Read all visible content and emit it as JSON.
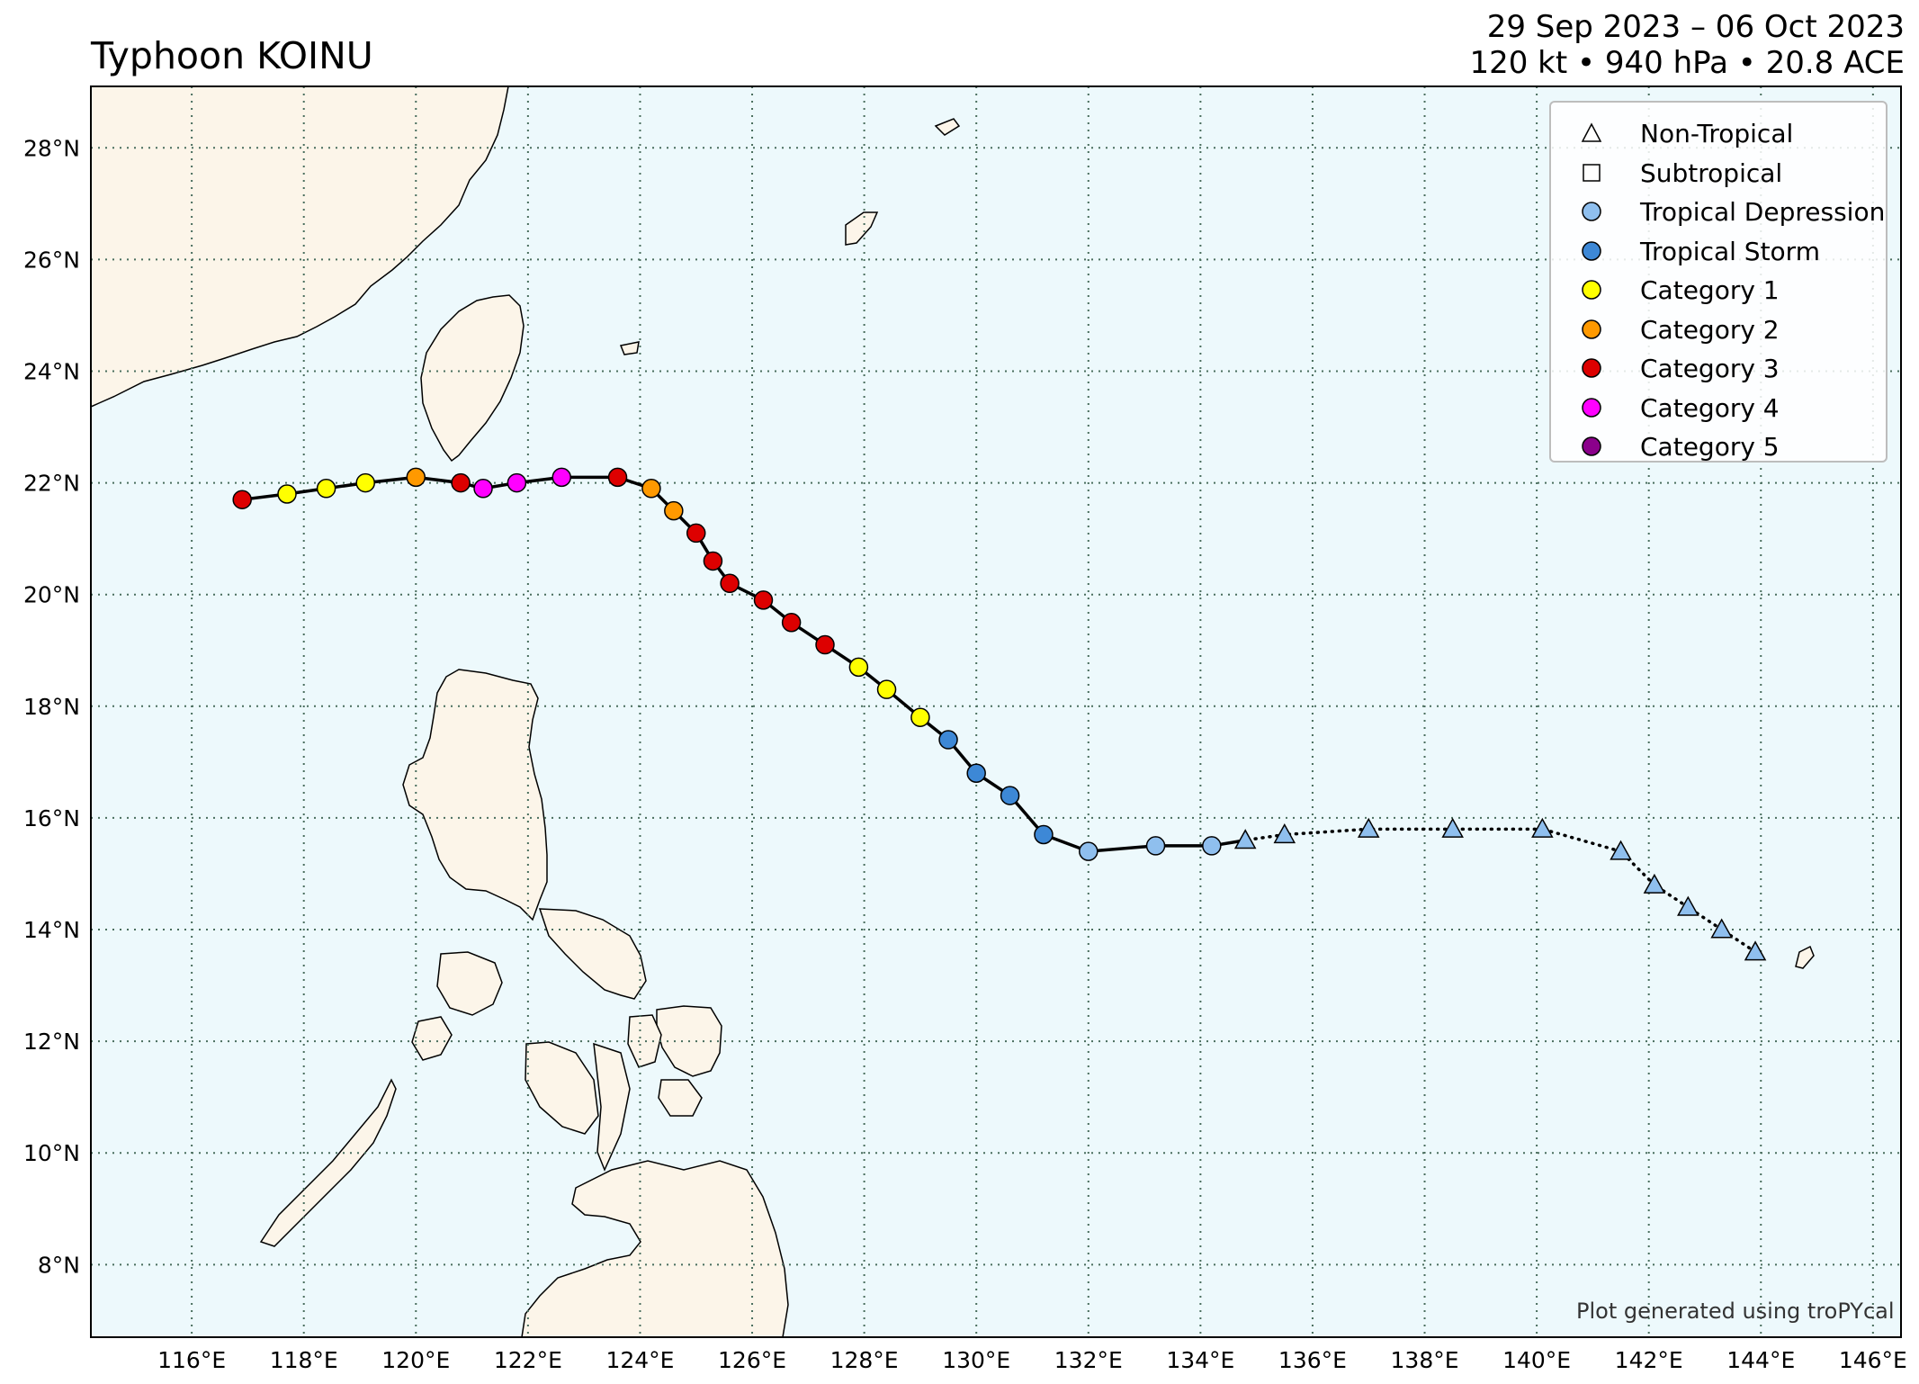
{
  "title": "Typhoon KOINU",
  "date_range": "29 Sep 2023 – 06 Oct 2023",
  "stats": "120 kt • 940 hPa • 20.8 ACE",
  "credit": "Plot generated using troPYcal",
  "colors": {
    "ocean": "#edf9fc",
    "land": "#fcf5e9",
    "track": "#000000",
    "non_tropical": "#8fbfee",
    "tropical_depression": "#8fbfee",
    "tropical_storm": "#3d88d6",
    "category_1": "#ffff00",
    "category_2": "#ff9900",
    "category_3": "#dd0000",
    "category_4": "#ff00ff",
    "category_5": "#8b008b"
  },
  "legend": [
    {
      "label": "Non-Tropical",
      "symbol": "triangle-icon",
      "color": "#ffffff"
    },
    {
      "label": "Subtropical",
      "symbol": "square-icon",
      "color": "#ffffff"
    },
    {
      "label": "Tropical Depression",
      "symbol": "circle-icon",
      "color": "#8fbfee"
    },
    {
      "label": "Tropical Storm",
      "symbol": "circle-icon",
      "color": "#3d88d6"
    },
    {
      "label": "Category 1",
      "symbol": "circle-icon",
      "color": "#ffff00"
    },
    {
      "label": "Category 2",
      "symbol": "circle-icon",
      "color": "#ff9900"
    },
    {
      "label": "Category 3",
      "symbol": "circle-icon",
      "color": "#dd0000"
    },
    {
      "label": "Category 4",
      "symbol": "circle-icon",
      "color": "#ff00ff"
    },
    {
      "label": "Category 5",
      "symbol": "circle-icon",
      "color": "#8b008b"
    }
  ],
  "map": {
    "lon_range": [
      114.2,
      146.5
    ],
    "lat_range": [
      6.7,
      29.1
    ],
    "grid": true,
    "lon_ticks": [
      "116°E",
      "118°E",
      "120°E",
      "122°E",
      "124°E",
      "126°E",
      "128°E",
      "130°E",
      "132°E",
      "134°E",
      "136°E",
      "138°E",
      "140°E",
      "142°E",
      "144°E",
      "146°E"
    ],
    "lon_tick_values": [
      116,
      118,
      120,
      122,
      124,
      126,
      128,
      130,
      132,
      134,
      136,
      138,
      140,
      142,
      144,
      146
    ],
    "lat_ticks": [
      "8°N",
      "10°N",
      "12°N",
      "14°N",
      "16°N",
      "18°N",
      "20°N",
      "22°N",
      "24°N",
      "26°N",
      "28°N"
    ],
    "lat_tick_values": [
      8,
      10,
      12,
      14,
      16,
      18,
      20,
      22,
      24,
      26,
      28
    ],
    "legend_position": "top-right"
  },
  "track": [
    {
      "lon": 143.9,
      "lat": 13.6,
      "type": "non_tropical"
    },
    {
      "lon": 143.3,
      "lat": 14.0,
      "type": "non_tropical"
    },
    {
      "lon": 142.7,
      "lat": 14.4,
      "type": "non_tropical"
    },
    {
      "lon": 142.1,
      "lat": 14.8,
      "type": "non_tropical"
    },
    {
      "lon": 141.5,
      "lat": 15.4,
      "type": "non_tropical"
    },
    {
      "lon": 140.1,
      "lat": 15.8,
      "type": "non_tropical"
    },
    {
      "lon": 138.5,
      "lat": 15.8,
      "type": "non_tropical"
    },
    {
      "lon": 137.0,
      "lat": 15.8,
      "type": "non_tropical"
    },
    {
      "lon": 135.5,
      "lat": 15.7,
      "type": "non_tropical"
    },
    {
      "lon": 134.8,
      "lat": 15.6,
      "type": "non_tropical"
    },
    {
      "lon": 134.2,
      "lat": 15.5,
      "type": "tropical_depression"
    },
    {
      "lon": 133.2,
      "lat": 15.5,
      "type": "tropical_depression"
    },
    {
      "lon": 132.0,
      "lat": 15.4,
      "type": "tropical_depression"
    },
    {
      "lon": 131.2,
      "lat": 15.7,
      "type": "tropical_storm"
    },
    {
      "lon": 130.6,
      "lat": 16.4,
      "type": "tropical_storm"
    },
    {
      "lon": 130.0,
      "lat": 16.8,
      "type": "tropical_storm"
    },
    {
      "lon": 129.5,
      "lat": 17.4,
      "type": "tropical_storm"
    },
    {
      "lon": 129.0,
      "lat": 17.8,
      "type": "category_1"
    },
    {
      "lon": 128.4,
      "lat": 18.3,
      "type": "category_1"
    },
    {
      "lon": 127.9,
      "lat": 18.7,
      "type": "category_1"
    },
    {
      "lon": 127.3,
      "lat": 19.1,
      "type": "category_3"
    },
    {
      "lon": 126.7,
      "lat": 19.5,
      "type": "category_3"
    },
    {
      "lon": 126.2,
      "lat": 19.9,
      "type": "category_3"
    },
    {
      "lon": 125.6,
      "lat": 20.2,
      "type": "category_3"
    },
    {
      "lon": 125.3,
      "lat": 20.6,
      "type": "category_3"
    },
    {
      "lon": 125.0,
      "lat": 21.1,
      "type": "category_3"
    },
    {
      "lon": 124.6,
      "lat": 21.5,
      "type": "category_2"
    },
    {
      "lon": 124.2,
      "lat": 21.9,
      "type": "category_2"
    },
    {
      "lon": 123.6,
      "lat": 22.1,
      "type": "category_3"
    },
    {
      "lon": 122.6,
      "lat": 22.1,
      "type": "category_4"
    },
    {
      "lon": 121.8,
      "lat": 22.0,
      "type": "category_4"
    },
    {
      "lon": 121.2,
      "lat": 21.9,
      "type": "category_4"
    },
    {
      "lon": 120.8,
      "lat": 22.0,
      "type": "category_3"
    },
    {
      "lon": 120.0,
      "lat": 22.1,
      "type": "category_2"
    },
    {
      "lon": 119.1,
      "lat": 22.0,
      "type": "category_1"
    },
    {
      "lon": 118.4,
      "lat": 21.9,
      "type": "category_1"
    },
    {
      "lon": 117.7,
      "lat": 21.8,
      "type": "category_1"
    },
    {
      "lon": 116.9,
      "lat": 21.7,
      "type": "category_3"
    }
  ]
}
